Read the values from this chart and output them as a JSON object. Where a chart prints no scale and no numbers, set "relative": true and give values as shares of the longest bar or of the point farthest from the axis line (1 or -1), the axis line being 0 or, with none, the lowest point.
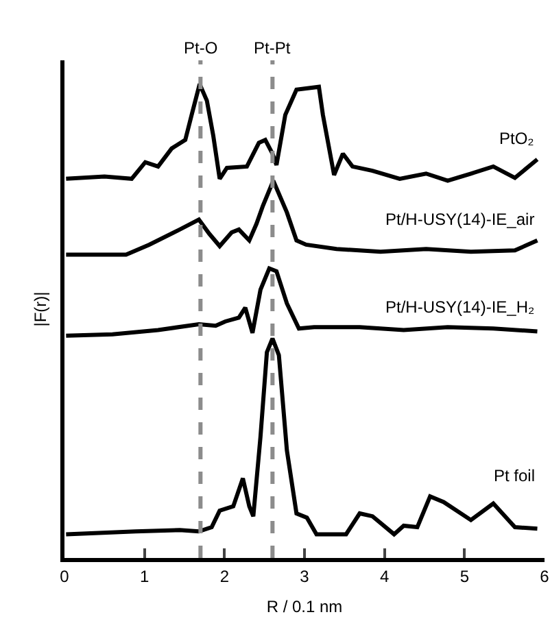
{
  "chart_data": {
    "type": "line",
    "relative": true,
    "xlabel": "R / 0.1 nm",
    "ylabel": "|F(r)|",
    "xlim": [
      0,
      6
    ],
    "xticks": [
      0,
      1,
      2,
      3,
      4,
      5,
      6
    ],
    "grid": false,
    "legend": false,
    "marker": "none",
    "line_style": "solid",
    "ref_lines": [
      {
        "axis": "x",
        "value": 1.7,
        "label": "Pt-O",
        "color": "#8c8c8c",
        "line_style": "dashed"
      },
      {
        "axis": "x",
        "value": 2.6,
        "label": "Pt-Pt",
        "color": "#8c8c8c",
        "line_style": "dashed"
      }
    ],
    "series": [
      {
        "name": "PtO₂",
        "color": "#000000",
        "x": [
          0.02,
          0.5,
          0.84,
          1.01,
          1.17,
          1.34,
          1.51,
          1.59,
          1.69,
          1.78,
          1.86,
          1.94,
          2.03,
          2.28,
          2.43,
          2.51,
          2.6,
          2.65,
          2.76,
          2.9,
          3.18,
          3.23,
          3.37,
          3.48,
          3.6,
          3.85,
          4.19,
          4.52,
          4.79,
          5.08,
          5.36,
          5.63,
          5.91
        ],
        "values": [
          0.8,
          0.805,
          0.8,
          0.835,
          0.826,
          0.864,
          0.882,
          0.935,
          1.0,
          0.965,
          0.891,
          0.8,
          0.823,
          0.826,
          0.876,
          0.882,
          0.853,
          0.829,
          0.935,
          0.988,
          0.994,
          0.935,
          0.808,
          0.853,
          0.826,
          0.817,
          0.8,
          0.811,
          0.796,
          0.811,
          0.826,
          0.802,
          0.841
        ]
      },
      {
        "name": "Pt/H-USY(14)-IE_air",
        "color": "#000000",
        "x": [
          0.02,
          0.77,
          1.06,
          1.44,
          1.68,
          1.81,
          1.94,
          2.09,
          2.18,
          2.31,
          2.4,
          2.48,
          2.61,
          2.78,
          2.9,
          3.02,
          3.4,
          3.95,
          4.52,
          5.08,
          5.63,
          5.91
        ],
        "values": [
          0.64,
          0.64,
          0.661,
          0.693,
          0.714,
          0.684,
          0.658,
          0.687,
          0.693,
          0.67,
          0.705,
          0.743,
          0.796,
          0.729,
          0.67,
          0.661,
          0.652,
          0.646,
          0.652,
          0.646,
          0.649,
          0.67
        ]
      },
      {
        "name": "Pt/H-USY(14)-IE_H₂",
        "color": "#000000",
        "x": [
          0.02,
          0.6,
          1.17,
          1.68,
          1.89,
          2.01,
          2.18,
          2.26,
          2.35,
          2.45,
          2.56,
          2.65,
          2.78,
          2.93,
          3.12,
          3.69,
          4.24,
          4.79,
          5.36,
          5.91
        ],
        "values": [
          0.469,
          0.472,
          0.481,
          0.493,
          0.49,
          0.499,
          0.507,
          0.528,
          0.475,
          0.566,
          0.611,
          0.605,
          0.537,
          0.484,
          0.487,
          0.487,
          0.481,
          0.487,
          0.484,
          0.478
        ]
      },
      {
        "name": "Pt foil",
        "color": "#000000",
        "x": [
          0.02,
          0.89,
          1.44,
          1.68,
          1.84,
          1.94,
          2.11,
          2.23,
          2.31,
          2.36,
          2.45,
          2.53,
          2.6,
          2.68,
          2.78,
          2.9,
          3.03,
          3.15,
          3.52,
          3.69,
          3.85,
          4.12,
          4.24,
          4.41,
          4.57,
          4.74,
          5.08,
          5.36,
          5.63,
          5.91
        ],
        "values": [
          0.05,
          0.056,
          0.059,
          0.056,
          0.065,
          0.1,
          0.109,
          0.168,
          0.109,
          0.088,
          0.256,
          0.434,
          0.463,
          0.428,
          0.227,
          0.094,
          0.085,
          0.05,
          0.05,
          0.094,
          0.088,
          0.05,
          0.068,
          0.065,
          0.13,
          0.118,
          0.08,
          0.115,
          0.065,
          0.062
        ]
      }
    ]
  }
}
